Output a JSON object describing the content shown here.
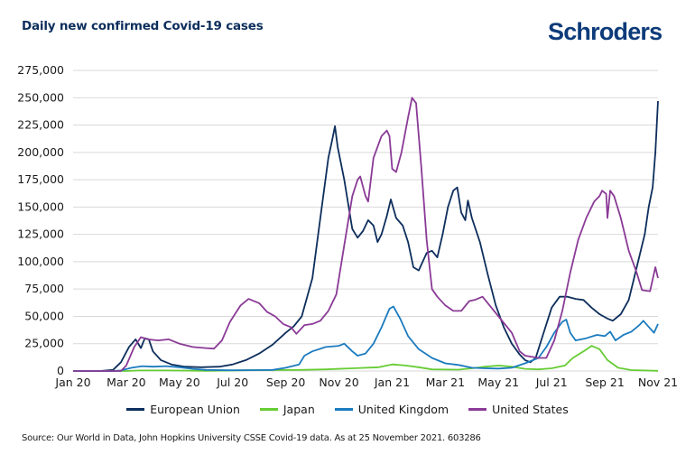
{
  "header": {
    "title": "Daily new confirmed Covid-19 cases",
    "brand": "Schroders"
  },
  "footer": {
    "source": "Source: Our World in Data, John Hopkins University CSSE Covid-19 data. As at 25 November 2021. 603286"
  },
  "colors": {
    "title": "#0d2e5c",
    "brand": "#0d3b7a",
    "grid": "#d9d9d9"
  },
  "chart_data": {
    "type": "line",
    "title": "Daily new confirmed Covid-19 cases",
    "xlabel": "",
    "ylabel": "",
    "ylim": [
      0,
      275000
    ],
    "yticks": [
      0,
      25000,
      50000,
      75000,
      100000,
      125000,
      150000,
      175000,
      200000,
      225000,
      250000,
      275000
    ],
    "ytick_labels": [
      "0",
      "25,000",
      "50,000",
      "75,000",
      "100,000",
      "125,000",
      "150,000",
      "175,000",
      "200,000",
      "225,000",
      "250,000",
      "275,000"
    ],
    "xlim_months": [
      0,
      22
    ],
    "xticks_months": [
      0,
      2,
      4,
      6,
      8,
      10,
      12,
      14,
      16,
      18,
      20,
      22
    ],
    "xtick_labels": [
      "Jan 20",
      "Mar 20",
      "May 20",
      "Jul 20",
      "Sep 20",
      "Nov 20",
      "Jan 21",
      "Mar 21",
      "May 21",
      "Jul 21",
      "Sep 21",
      "Nov 21"
    ],
    "grid": "horizontal",
    "legend_position": "bottom",
    "x_unit": "months since Jan 2020",
    "series": [
      {
        "name": "European Union",
        "color": "#0d2e5c",
        "points": [
          [
            0,
            0
          ],
          [
            1,
            0
          ],
          [
            1.5,
            1000
          ],
          [
            1.8,
            8000
          ],
          [
            2.1,
            22000
          ],
          [
            2.35,
            29000
          ],
          [
            2.55,
            21000
          ],
          [
            2.7,
            30000
          ],
          [
            2.85,
            29000
          ],
          [
            3.0,
            18000
          ],
          [
            3.3,
            10000
          ],
          [
            3.7,
            6000
          ],
          [
            4.2,
            4000
          ],
          [
            4.8,
            3500
          ],
          [
            5.5,
            4000
          ],
          [
            6.0,
            6000
          ],
          [
            6.5,
            10000
          ],
          [
            7.0,
            16000
          ],
          [
            7.5,
            24000
          ],
          [
            8.0,
            35000
          ],
          [
            8.3,
            41000
          ],
          [
            8.6,
            50000
          ],
          [
            9.0,
            85000
          ],
          [
            9.3,
            140000
          ],
          [
            9.6,
            195000
          ],
          [
            9.75,
            212000
          ],
          [
            9.85,
            224000
          ],
          [
            9.95,
            205000
          ],
          [
            10.2,
            175000
          ],
          [
            10.5,
            130000
          ],
          [
            10.7,
            122000
          ],
          [
            10.9,
            128000
          ],
          [
            11.1,
            138000
          ],
          [
            11.3,
            133000
          ],
          [
            11.45,
            118000
          ],
          [
            11.6,
            125000
          ],
          [
            11.8,
            142000
          ],
          [
            11.95,
            157000
          ],
          [
            12.15,
            140000
          ],
          [
            12.4,
            133000
          ],
          [
            12.6,
            118000
          ],
          [
            12.8,
            95000
          ],
          [
            13.0,
            92000
          ],
          [
            13.3,
            108000
          ],
          [
            13.5,
            110000
          ],
          [
            13.7,
            104000
          ],
          [
            13.9,
            125000
          ],
          [
            14.1,
            150000
          ],
          [
            14.3,
            165000
          ],
          [
            14.45,
            168000
          ],
          [
            14.6,
            145000
          ],
          [
            14.75,
            138000
          ],
          [
            14.85,
            156000
          ],
          [
            15.0,
            140000
          ],
          [
            15.3,
            118000
          ],
          [
            15.6,
            88000
          ],
          [
            15.9,
            60000
          ],
          [
            16.2,
            40000
          ],
          [
            16.5,
            25000
          ],
          [
            16.8,
            15000
          ],
          [
            17.0,
            10000
          ],
          [
            17.2,
            8000
          ],
          [
            17.4,
            12000
          ],
          [
            17.7,
            35000
          ],
          [
            18.0,
            58000
          ],
          [
            18.3,
            68000
          ],
          [
            18.6,
            68000
          ],
          [
            18.9,
            66000
          ],
          [
            19.2,
            65000
          ],
          [
            19.5,
            58000
          ],
          [
            19.8,
            52000
          ],
          [
            20.1,
            48000
          ],
          [
            20.3,
            46000
          ],
          [
            20.6,
            52000
          ],
          [
            20.9,
            65000
          ],
          [
            21.1,
            85000
          ],
          [
            21.3,
            105000
          ],
          [
            21.5,
            125000
          ],
          [
            21.65,
            150000
          ],
          [
            21.8,
            168000
          ],
          [
            21.9,
            200000
          ],
          [
            22.0,
            247000
          ]
        ]
      },
      {
        "name": "Japan",
        "color": "#66cc33",
        "points": [
          [
            0,
            0
          ],
          [
            2,
            0
          ],
          [
            2.5,
            500
          ],
          [
            3.5,
            500
          ],
          [
            5,
            200
          ],
          [
            7,
            800
          ],
          [
            8.5,
            1000
          ],
          [
            9.5,
            1500
          ],
          [
            10.5,
            2500
          ],
          [
            11.5,
            3500
          ],
          [
            12.0,
            6000
          ],
          [
            12.5,
            5000
          ],
          [
            13.0,
            3500
          ],
          [
            13.5,
            1500
          ],
          [
            14.5,
            1200
          ],
          [
            15.0,
            2500
          ],
          [
            15.5,
            4000
          ],
          [
            16.0,
            5000
          ],
          [
            16.5,
            4000
          ],
          [
            17.0,
            2000
          ],
          [
            17.5,
            1500
          ],
          [
            18.0,
            2500
          ],
          [
            18.5,
            5000
          ],
          [
            18.8,
            12000
          ],
          [
            19.2,
            18000
          ],
          [
            19.5,
            23000
          ],
          [
            19.8,
            20000
          ],
          [
            20.1,
            10000
          ],
          [
            20.5,
            3000
          ],
          [
            21.0,
            800
          ],
          [
            22.0,
            200
          ]
        ]
      },
      {
        "name": "United Kingdom",
        "color": "#1b7bbf",
        "points": [
          [
            0,
            0
          ],
          [
            1.5,
            0
          ],
          [
            1.8,
            500
          ],
          [
            2.2,
            3000
          ],
          [
            2.6,
            4500
          ],
          [
            3.0,
            4000
          ],
          [
            3.5,
            4500
          ],
          [
            4.0,
            3500
          ],
          [
            4.5,
            2000
          ],
          [
            5.0,
            1000
          ],
          [
            6.0,
            700
          ],
          [
            7.0,
            800
          ],
          [
            7.5,
            1000
          ],
          [
            8.0,
            3000
          ],
          [
            8.5,
            6000
          ],
          [
            8.7,
            14000
          ],
          [
            9.0,
            18000
          ],
          [
            9.5,
            22000
          ],
          [
            10.0,
            23000
          ],
          [
            10.2,
            25000
          ],
          [
            10.5,
            18000
          ],
          [
            10.7,
            14000
          ],
          [
            11.0,
            16000
          ],
          [
            11.3,
            25000
          ],
          [
            11.6,
            40000
          ],
          [
            11.9,
            57000
          ],
          [
            12.05,
            59000
          ],
          [
            12.3,
            48000
          ],
          [
            12.6,
            32000
          ],
          [
            13.0,
            20000
          ],
          [
            13.5,
            12000
          ],
          [
            14.0,
            7000
          ],
          [
            14.5,
            5500
          ],
          [
            15.0,
            3000
          ],
          [
            15.5,
            2500
          ],
          [
            16.0,
            2200
          ],
          [
            16.5,
            3000
          ],
          [
            17.0,
            7000
          ],
          [
            17.5,
            12000
          ],
          [
            17.8,
            22000
          ],
          [
            18.1,
            35000
          ],
          [
            18.4,
            45000
          ],
          [
            18.55,
            47000
          ],
          [
            18.7,
            35000
          ],
          [
            18.9,
            28000
          ],
          [
            19.3,
            30000
          ],
          [
            19.7,
            33000
          ],
          [
            20.0,
            32000
          ],
          [
            20.2,
            36000
          ],
          [
            20.4,
            28000
          ],
          [
            20.7,
            33000
          ],
          [
            21.0,
            36000
          ],
          [
            21.3,
            42000
          ],
          [
            21.45,
            46000
          ],
          [
            21.7,
            39000
          ],
          [
            21.85,
            35000
          ],
          [
            22.0,
            43000
          ]
        ]
      },
      {
        "name": "United States",
        "color": "#8a3a96",
        "points": [
          [
            0,
            0
          ],
          [
            1.8,
            0
          ],
          [
            2.0,
            5000
          ],
          [
            2.3,
            22000
          ],
          [
            2.55,
            31000
          ],
          [
            2.8,
            29000
          ],
          [
            3.2,
            28000
          ],
          [
            3.6,
            29000
          ],
          [
            4.0,
            25000
          ],
          [
            4.5,
            22000
          ],
          [
            5.0,
            21000
          ],
          [
            5.3,
            20500
          ],
          [
            5.6,
            28000
          ],
          [
            5.9,
            45000
          ],
          [
            6.3,
            60000
          ],
          [
            6.6,
            66000
          ],
          [
            7.0,
            62000
          ],
          [
            7.3,
            54000
          ],
          [
            7.6,
            50000
          ],
          [
            7.9,
            43000
          ],
          [
            8.2,
            40000
          ],
          [
            8.4,
            34000
          ],
          [
            8.7,
            42000
          ],
          [
            9.0,
            43000
          ],
          [
            9.3,
            46000
          ],
          [
            9.6,
            55000
          ],
          [
            9.9,
            70000
          ],
          [
            10.2,
            115000
          ],
          [
            10.5,
            160000
          ],
          [
            10.7,
            175000
          ],
          [
            10.8,
            178000
          ],
          [
            11.0,
            160000
          ],
          [
            11.1,
            155000
          ],
          [
            11.3,
            195000
          ],
          [
            11.6,
            215000
          ],
          [
            11.8,
            220000
          ],
          [
            11.9,
            215000
          ],
          [
            12.0,
            185000
          ],
          [
            12.15,
            182000
          ],
          [
            12.35,
            200000
          ],
          [
            12.6,
            232000
          ],
          [
            12.75,
            250000
          ],
          [
            12.9,
            245000
          ],
          [
            13.1,
            185000
          ],
          [
            13.3,
            120000
          ],
          [
            13.5,
            75000
          ],
          [
            13.7,
            68000
          ],
          [
            14.0,
            60000
          ],
          [
            14.3,
            55000
          ],
          [
            14.6,
            55000
          ],
          [
            14.9,
            64000
          ],
          [
            15.1,
            65000
          ],
          [
            15.4,
            68000
          ],
          [
            15.6,
            62000
          ],
          [
            16.0,
            50000
          ],
          [
            16.5,
            35000
          ],
          [
            16.8,
            18000
          ],
          [
            17.0,
            14000
          ],
          [
            17.5,
            12000
          ],
          [
            17.8,
            12000
          ],
          [
            18.1,
            28000
          ],
          [
            18.4,
            55000
          ],
          [
            18.7,
            90000
          ],
          [
            19.0,
            120000
          ],
          [
            19.3,
            140000
          ],
          [
            19.6,
            155000
          ],
          [
            19.8,
            160000
          ],
          [
            19.9,
            165000
          ],
          [
            20.05,
            162000
          ],
          [
            20.1,
            140000
          ],
          [
            20.2,
            165000
          ],
          [
            20.35,
            160000
          ],
          [
            20.6,
            140000
          ],
          [
            20.9,
            110000
          ],
          [
            21.2,
            90000
          ],
          [
            21.4,
            74000
          ],
          [
            21.7,
            73000
          ],
          [
            21.9,
            95000
          ],
          [
            22.0,
            85000
          ]
        ]
      }
    ]
  }
}
